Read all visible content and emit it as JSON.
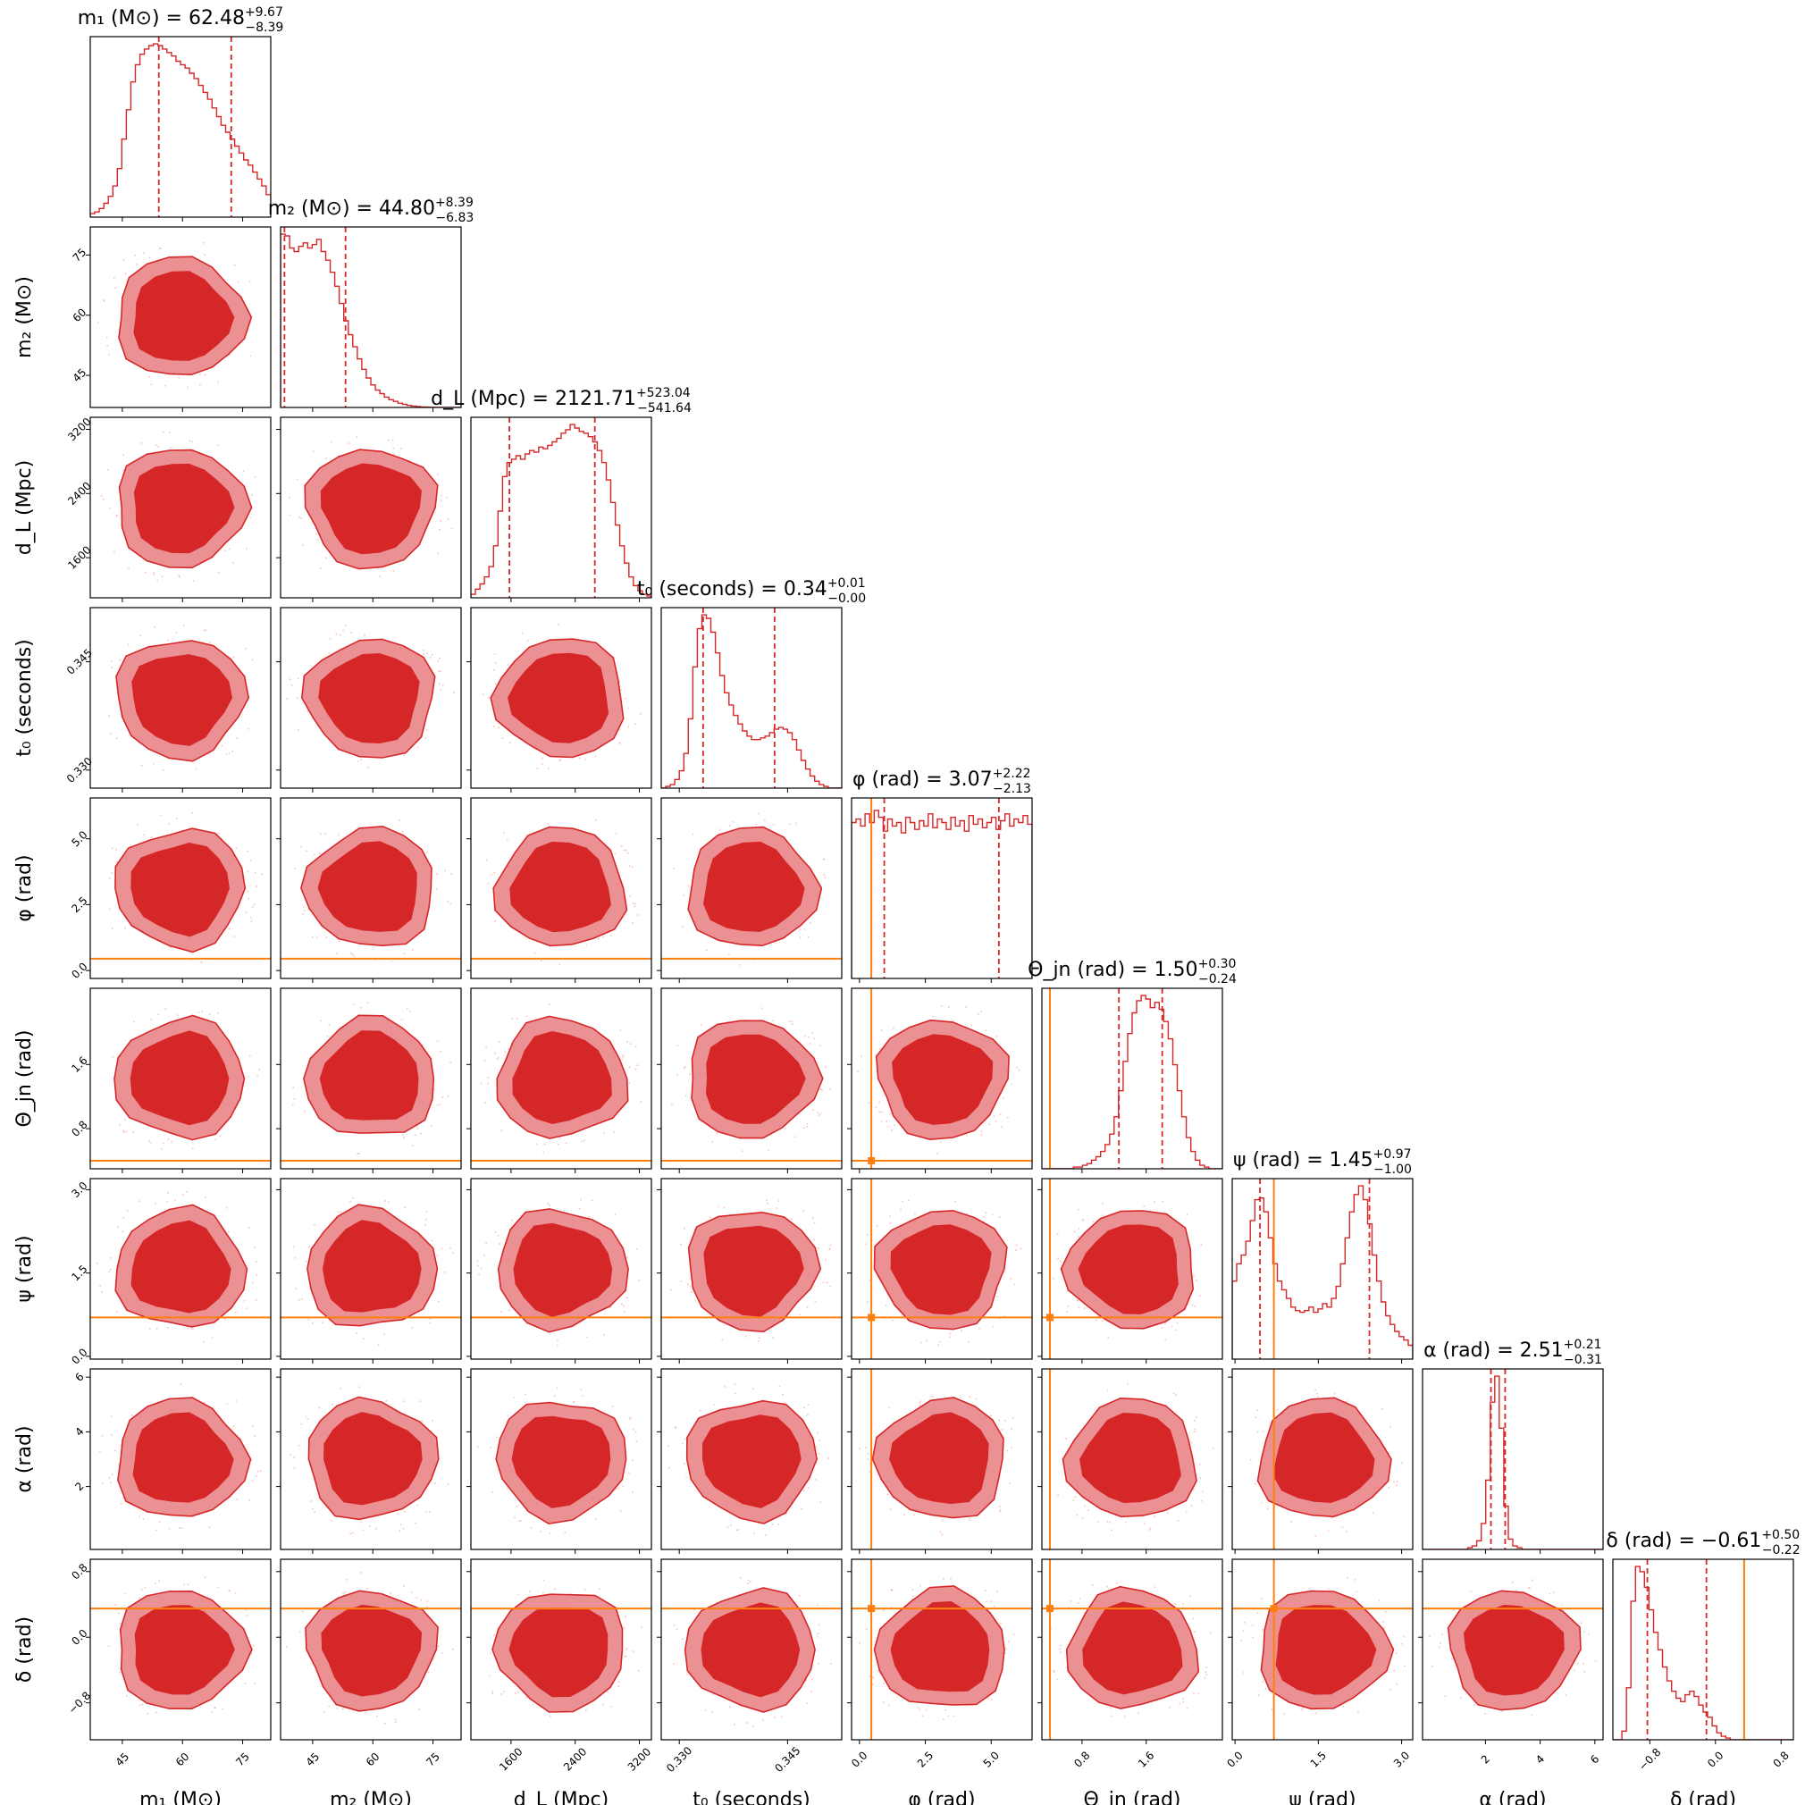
{
  "colors": {
    "posterior": "#d62728",
    "truth": "#ff7f0e",
    "frame": "#000000",
    "background": "#ffffff"
  },
  "chart_data": {
    "type": "corner",
    "parameters": [
      {
        "key": "m1",
        "label": "m₁ (M⊙)",
        "title": "m₁ (M⊙) = 62.48",
        "median": 62.48,
        "plus": "+9.67",
        "minus": "−8.39",
        "range": [
          37,
          82
        ],
        "ticks": [
          45,
          60,
          75
        ],
        "tick_labels": [
          "45",
          "60",
          "75"
        ],
        "quantile_lines": [
          54.09,
          72.15
        ],
        "truth": null,
        "hist": [
          0.02,
          0.03,
          0.05,
          0.08,
          0.12,
          0.18,
          0.28,
          0.45,
          0.62,
          0.78,
          0.88,
          0.94,
          0.97,
          0.99,
          1.0,
          0.99,
          0.97,
          0.95,
          0.93,
          0.9,
          0.88,
          0.86,
          0.83,
          0.8,
          0.76,
          0.72,
          0.68,
          0.63,
          0.58,
          0.53,
          0.49,
          0.45,
          0.41,
          0.37,
          0.33,
          0.3,
          0.26,
          0.22,
          0.18,
          0.13
        ]
      },
      {
        "key": "m2",
        "label": "m₂ (M⊙)",
        "title": "m₂ (M⊙) = 44.80",
        "median": 44.8,
        "plus": "+8.39",
        "minus": "−6.83",
        "range": [
          37,
          82
        ],
        "ticks": [
          45,
          60,
          75
        ],
        "tick_labels": [
          "45",
          "60",
          "75"
        ],
        "quantile_lines": [
          37.97,
          53.19
        ],
        "truth": null,
        "hist": [
          1.0,
          0.99,
          0.92,
          0.9,
          0.93,
          0.95,
          0.92,
          0.94,
          0.97,
          0.9,
          0.85,
          0.78,
          0.7,
          0.6,
          0.5,
          0.42,
          0.35,
          0.28,
          0.22,
          0.17,
          0.13,
          0.1,
          0.08,
          0.06,
          0.045,
          0.035,
          0.025,
          0.018,
          0.012,
          0.008,
          0.005,
          0.003,
          0.002,
          0.001,
          0.0,
          0.0,
          0.0,
          0.0,
          0.0,
          0.0
        ]
      },
      {
        "key": "dL",
        "label": "d_L (Mpc)",
        "title": "d_L (Mpc) = 2121.71",
        "median": 2121.71,
        "plus": "+523.04",
        "minus": "−541.64",
        "range": [
          1100,
          3350
        ],
        "ticks": [
          1600,
          2400,
          3200
        ],
        "tick_labels": [
          "1600",
          "2400",
          "3200"
        ],
        "quantile_lines": [
          1580.07,
          2644.75
        ],
        "truth": null,
        "hist": [
          0.02,
          0.05,
          0.08,
          0.12,
          0.18,
          0.3,
          0.5,
          0.7,
          0.78,
          0.8,
          0.82,
          0.8,
          0.83,
          0.85,
          0.84,
          0.87,
          0.86,
          0.88,
          0.9,
          0.92,
          0.95,
          0.97,
          1.0,
          0.98,
          0.96,
          0.95,
          0.93,
          0.9,
          0.85,
          0.78,
          0.68,
          0.55,
          0.42,
          0.3,
          0.2,
          0.12,
          0.07,
          0.04,
          0.02,
          0.01
        ]
      },
      {
        "key": "t0",
        "label": "t₀ (seconds)",
        "title": "t₀ (seconds) = 0.34",
        "median": 0.34,
        "plus": "+0.01",
        "minus": "−0.00",
        "range": [
          0.3275,
          0.3525
        ],
        "ticks": [
          0.33,
          0.345
        ],
        "tick_labels": [
          "0.330",
          "0.345"
        ],
        "quantile_lines": [
          0.3333,
          0.3432
        ],
        "truth": null,
        "hist": [
          0.0,
          0.01,
          0.02,
          0.05,
          0.1,
          0.2,
          0.4,
          0.7,
          0.92,
          1.0,
          0.98,
          0.9,
          0.78,
          0.65,
          0.55,
          0.48,
          0.42,
          0.37,
          0.33,
          0.3,
          0.28,
          0.28,
          0.29,
          0.3,
          0.32,
          0.34,
          0.35,
          0.34,
          0.32,
          0.28,
          0.22,
          0.16,
          0.11,
          0.07,
          0.04,
          0.02,
          0.01,
          0.0,
          0.0,
          0.0
        ]
      },
      {
        "key": "phi",
        "label": "φ (rad)",
        "title": "φ (rad) = 3.07",
        "median": 3.07,
        "plus": "+2.22",
        "minus": "−2.13",
        "range": [
          -0.3,
          6.55
        ],
        "ticks": [
          0,
          2.5,
          5
        ],
        "tick_labels": [
          "0.0",
          "2.5",
          "5.0"
        ],
        "quantile_lines": [
          0.94,
          5.29
        ],
        "truth": 0.45,
        "hist": [
          0.9,
          0.92,
          0.88,
          0.95,
          0.9,
          0.97,
          0.93,
          0.85,
          0.92,
          0.88,
          0.9,
          0.84,
          0.93,
          0.9,
          0.86,
          0.91,
          0.88,
          0.95,
          0.87,
          0.92,
          0.9,
          0.86,
          0.93,
          0.88,
          0.91,
          0.85,
          0.94,
          0.89,
          0.92,
          0.87,
          0.9,
          0.93,
          0.86,
          0.91,
          0.95,
          0.88,
          0.92,
          0.9,
          0.94,
          0.89
        ]
      },
      {
        "key": "theta_jn",
        "label": "Θ_jn (rad)",
        "title": "Θ_jn (rad) = 1.50",
        "median": 1.5,
        "plus": "+0.30",
        "minus": "−0.24",
        "range": [
          0.3,
          2.55
        ],
        "ticks": [
          0.8,
          1.6
        ],
        "tick_labels": [
          "0.8",
          "1.6"
        ],
        "quantile_lines": [
          1.26,
          1.8
        ],
        "truth": 0.4,
        "hist": [
          0.0,
          0.0,
          0.0,
          0.0,
          0.0,
          0.0,
          0.0,
          0.01,
          0.01,
          0.02,
          0.03,
          0.05,
          0.07,
          0.1,
          0.14,
          0.2,
          0.3,
          0.45,
          0.62,
          0.78,
          0.9,
          0.97,
          1.0,
          0.98,
          0.93,
          0.96,
          0.92,
          0.85,
          0.75,
          0.6,
          0.45,
          0.3,
          0.18,
          0.1,
          0.05,
          0.02,
          0.01,
          0.0,
          0.0,
          0.0
        ]
      },
      {
        "key": "psi",
        "label": "ψ (rad)",
        "title": "ψ (rad) = 1.45",
        "median": 1.45,
        "plus": "+0.97",
        "minus": "−1.00",
        "range": [
          -0.05,
          3.2
        ],
        "ticks": [
          0,
          1.5,
          3
        ],
        "tick_labels": [
          "0.0",
          "1.5",
          "3.0"
        ],
        "quantile_lines": [
          0.45,
          2.42
        ],
        "truth": 0.7,
        "hist": [
          0.45,
          0.55,
          0.6,
          0.68,
          0.8,
          0.92,
          0.93,
          0.85,
          0.7,
          0.55,
          0.45,
          0.4,
          0.35,
          0.3,
          0.28,
          0.27,
          0.28,
          0.3,
          0.27,
          0.29,
          0.32,
          0.3,
          0.35,
          0.42,
          0.55,
          0.7,
          0.85,
          0.95,
          1.0,
          0.92,
          0.78,
          0.6,
          0.45,
          0.33,
          0.25,
          0.2,
          0.16,
          0.13,
          0.11,
          0.08
        ]
      },
      {
        "key": "alpha",
        "label": "α (rad)",
        "title": "α (rad) = 2.51",
        "median": 2.51,
        "plus": "+0.21",
        "minus": "−0.31",
        "range": [
          -0.3,
          6.3
        ],
        "ticks": [
          2,
          4,
          6
        ],
        "tick_labels": [
          "2",
          "4",
          "6"
        ],
        "quantile_lines": [
          2.2,
          2.72
        ],
        "truth": null,
        "hist": [
          0.0,
          0.0,
          0.0,
          0.0,
          0.0,
          0.0,
          0.0,
          0.0,
          0.0,
          0.0,
          0.01,
          0.02,
          0.05,
          0.15,
          0.4,
          0.85,
          1.0,
          0.7,
          0.25,
          0.06,
          0.02,
          0.01,
          0.0,
          0.0,
          0.0,
          0.0,
          0.0,
          0.0,
          0.0,
          0.0,
          0.0,
          0.0,
          0.0,
          0.0,
          0.0,
          0.0,
          0.0,
          0.0,
          0.0,
          0.0
        ]
      },
      {
        "key": "delta",
        "label": "δ (rad)",
        "title": "δ (rad) = −0.61",
        "median": -0.61,
        "plus": "+0.50",
        "minus": "−0.22",
        "range": [
          -1.25,
          0.95
        ],
        "ticks": [
          -0.8,
          0.0,
          0.8
        ],
        "tick_labels": [
          "−0.8",
          "0.0",
          "0.8"
        ],
        "quantile_lines": [
          -0.83,
          -0.11
        ],
        "truth": 0.35,
        "hist": [
          0.0,
          0.0,
          0.05,
          0.3,
          0.8,
          1.0,
          0.97,
          0.88,
          0.75,
          0.62,
          0.52,
          0.42,
          0.34,
          0.28,
          0.24,
          0.22,
          0.26,
          0.28,
          0.25,
          0.2,
          0.16,
          0.13,
          0.08,
          0.04,
          0.02,
          0.01,
          0.0,
          0.0,
          0.0,
          0.0,
          0.0,
          0.0,
          0.0,
          0.0,
          0.0,
          0.0,
          0.0,
          0.0,
          0.0,
          0.0
        ]
      }
    ]
  }
}
